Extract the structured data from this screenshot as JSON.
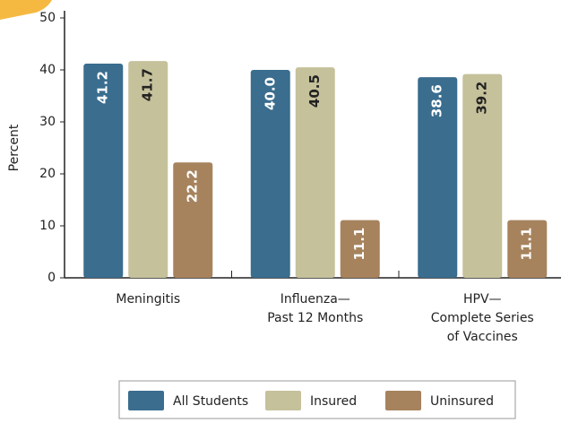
{
  "chart_data": {
    "type": "bar",
    "y_label": "Percent",
    "categories": [
      "Meningitis",
      "Influenza—\nPast 12 Months",
      "HPV—\nComplete Series\nof Vaccines"
    ],
    "series": [
      {
        "name": "All Students",
        "color": "#3a6d8e",
        "values": [
          41.2,
          40.0,
          38.6
        ],
        "value_labels": [
          "41.2",
          "40.0",
          "38.6"
        ]
      },
      {
        "name": "Insured",
        "color": "#c5c19b",
        "values": [
          41.7,
          40.5,
          39.2
        ],
        "value_labels": [
          "41.7",
          "40.5",
          "39.2"
        ]
      },
      {
        "name": "Uninsured",
        "color": "#a6835d",
        "values": [
          22.2,
          11.1,
          11.1
        ],
        "value_labels": [
          "22.2",
          "11.1",
          "11.1"
        ]
      }
    ],
    "ylim": [
      0,
      50
    ],
    "yticks": [
      0,
      10,
      20,
      30,
      40,
      50
    ],
    "legend": "bottom"
  }
}
